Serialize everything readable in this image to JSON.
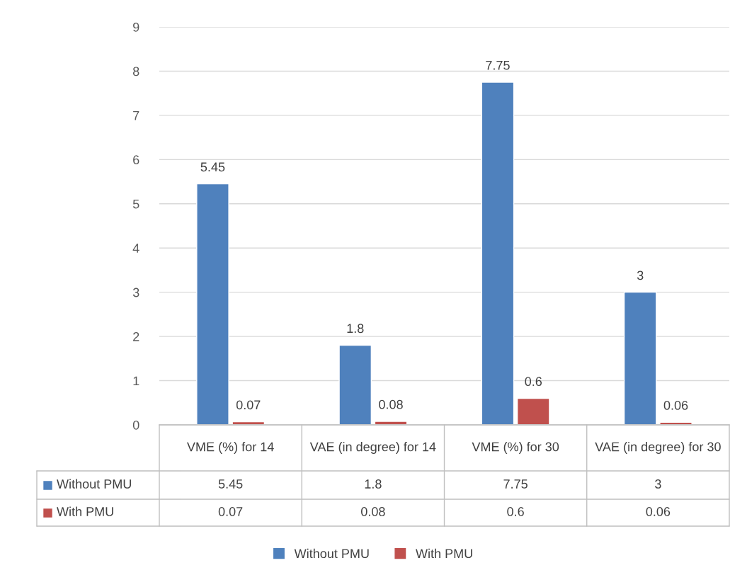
{
  "chart_data": {
    "type": "bar",
    "categories": [
      "VME (%) for 14",
      "VAE (in degree) for 14",
      "VME (%) for 30",
      "VAE (in degree) for 30"
    ],
    "series": [
      {
        "name": "Without PMU",
        "color": "#4f81bd",
        "values": [
          5.45,
          1.8,
          7.75,
          3
        ],
        "value_labels": [
          "5.45",
          "1.8",
          "7.75",
          "3"
        ]
      },
      {
        "name": "With PMU",
        "color": "#c0504d",
        "values": [
          0.07,
          0.08,
          0.6,
          0.06
        ],
        "value_labels": [
          "0.07",
          "0.08",
          "0.6",
          "0.06"
        ]
      }
    ],
    "ylim": [
      0,
      9
    ],
    "yticks": [
      0,
      1,
      2,
      3,
      4,
      5,
      6,
      7,
      8,
      9
    ],
    "annotations": [
      "5.45",
      "1.8",
      "7.75",
      "3",
      "0.07",
      "0.08",
      "0.6",
      "0.06"
    ],
    "grid": "y",
    "legend": "bottom"
  }
}
